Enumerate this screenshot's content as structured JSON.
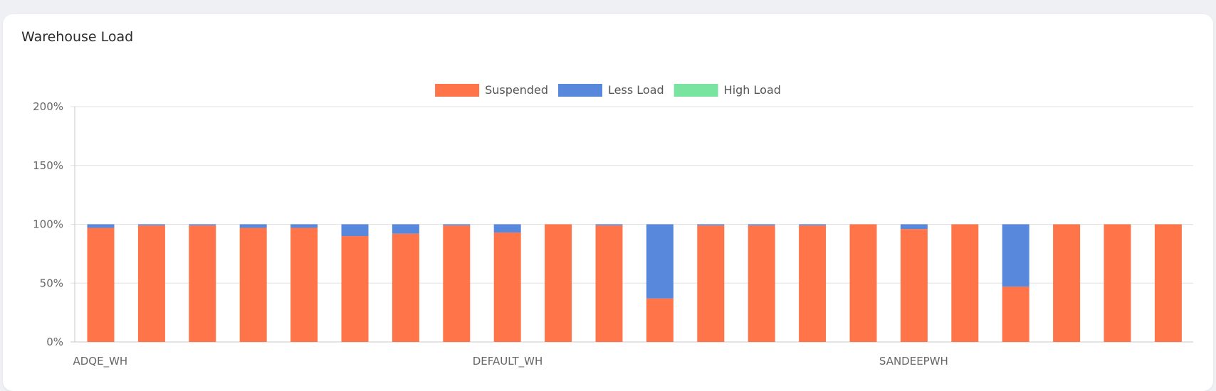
{
  "card": {
    "title": "Warehouse Load"
  },
  "colors": {
    "suspended": "#ff7448",
    "less_load": "#5788dc",
    "high_load": "#79e3a0",
    "grid": "#e2e2e2",
    "axis": "#c8c8c8"
  },
  "chart_data": {
    "type": "bar",
    "stacked": true,
    "title": "",
    "xlabel": "",
    "ylabel": "",
    "ylim": [
      0,
      200
    ],
    "y_ticks": [
      "0%",
      "50%",
      "100%",
      "150%",
      "200%"
    ],
    "y_tick_values": [
      0,
      50,
      100,
      150,
      200
    ],
    "x_tick_labels": [
      {
        "index": 0,
        "label": "ADQE_WH"
      },
      {
        "index": 8,
        "label": "DEFAULT_WH"
      },
      {
        "index": 16,
        "label": "SANDEEPWH"
      }
    ],
    "bar_count": 22,
    "legend_position": "top-center",
    "grid": true,
    "series": [
      {
        "name": "Suspended",
        "color": "#ff7448",
        "values": [
          97,
          99,
          99,
          97,
          97,
          90,
          92,
          99,
          93,
          100,
          99,
          37,
          99,
          99,
          99,
          100,
          96,
          100,
          47,
          100,
          100,
          100
        ]
      },
      {
        "name": "Less Load",
        "color": "#5788dc",
        "values": [
          3,
          1,
          1,
          3,
          3,
          10,
          8,
          1,
          7,
          0,
          1,
          63,
          1,
          1,
          1,
          0,
          4,
          0,
          53,
          0,
          0,
          0
        ]
      },
      {
        "name": "High Load",
        "color": "#79e3a0",
        "values": [
          0,
          0,
          0,
          0,
          0,
          0,
          0,
          0,
          0,
          0,
          0,
          0,
          0,
          0,
          0,
          0,
          0,
          0,
          0,
          0,
          0,
          0
        ]
      }
    ]
  }
}
